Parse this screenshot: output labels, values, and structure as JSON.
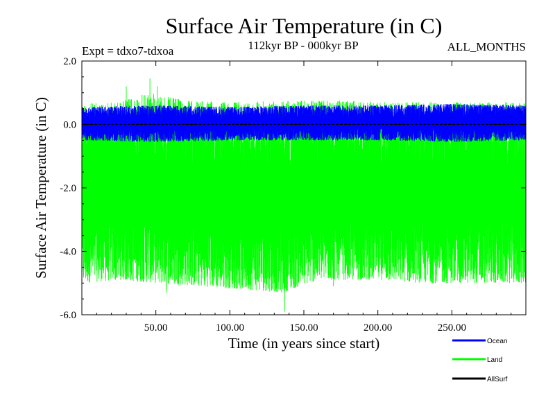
{
  "chart_data": {
    "type": "line",
    "title": "Surface Air Temperature (in C)",
    "subtitle_left": "Expt = tdxo7-tdxoa",
    "subtitle_center": "112kyr BP - 000kyr BP",
    "subtitle_right": "ALL_MONTHS",
    "xlabel": "Time (in years since start)",
    "ylabel": "Surface Air Temperature (in C)",
    "xlim": [
      0,
      300
    ],
    "ylim": [
      -6.0,
      2.0
    ],
    "x_ticks": [
      50,
      100,
      150,
      200,
      250
    ],
    "x_tick_labels": [
      "50.00",
      "100.00",
      "150.00",
      "200.00",
      "250.00"
    ],
    "y_ticks": [
      2.0,
      0.0,
      -2.0,
      -4.0,
      -6.0
    ],
    "y_tick_labels": [
      "2.0",
      "0.0",
      "-2.0",
      "-4.0",
      "-6.0"
    ],
    "samples_per_year": 12,
    "legend_position": "bottom-right",
    "series": [
      {
        "name": "Land",
        "color": "#00ff00",
        "upper_envelope_knots": [
          [
            0,
            0.65
          ],
          [
            25,
            0.7
          ],
          [
            45,
            1.0
          ],
          [
            70,
            0.75
          ],
          [
            100,
            0.7
          ],
          [
            140,
            0.75
          ],
          [
            175,
            0.75
          ],
          [
            210,
            0.7
          ],
          [
            250,
            0.7
          ],
          [
            300,
            0.7
          ]
        ],
        "lower_envelope_knots": [
          [
            0,
            -5.0
          ],
          [
            25,
            -4.9
          ],
          [
            50,
            -5.0
          ],
          [
            80,
            -5.1
          ],
          [
            110,
            -5.2
          ],
          [
            135,
            -5.3
          ],
          [
            160,
            -4.9
          ],
          [
            200,
            -4.9
          ],
          [
            230,
            -5.0
          ],
          [
            260,
            -5.0
          ],
          [
            300,
            -5.0
          ]
        ],
        "peaks": [
          [
            30,
            1.2
          ],
          [
            46,
            1.45
          ],
          [
            51,
            1.2
          ],
          [
            137,
            -5.9
          ],
          [
            57,
            -5.3
          ],
          [
            170,
            -5.1
          ]
        ]
      },
      {
        "name": "Ocean",
        "color": "#0000ff",
        "upper_envelope_knots": [
          [
            0,
            0.55
          ],
          [
            50,
            0.6
          ],
          [
            100,
            0.55
          ],
          [
            150,
            0.6
          ],
          [
            200,
            0.6
          ],
          [
            250,
            0.65
          ],
          [
            300,
            0.6
          ]
        ],
        "lower_envelope_knots": [
          [
            0,
            -0.5
          ],
          [
            50,
            -0.55
          ],
          [
            100,
            -0.5
          ],
          [
            150,
            -0.5
          ],
          [
            200,
            -0.5
          ],
          [
            250,
            -0.55
          ],
          [
            300,
            -0.5
          ]
        ],
        "peaks": []
      },
      {
        "name": "AllSurf",
        "color": "#000000",
        "constant_value": 0.0
      }
    ]
  }
}
